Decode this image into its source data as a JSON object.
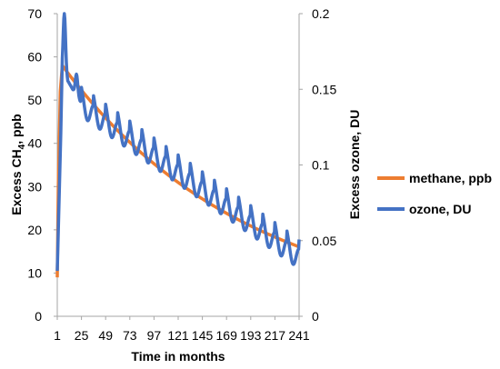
{
  "chart_data": {
    "type": "line",
    "xlabel": "Time in months",
    "ylabel_left": "Excess CH",
    "ylabel_left_sub": "4",
    "ylabel_left_tail": ", ppb",
    "ylabel_right": "Excess ozone, DU",
    "x_ticks": [
      "1",
      "25",
      "49",
      "73",
      "97",
      "121",
      "145",
      "169",
      "193",
      "217",
      "241"
    ],
    "x_range": [
      1,
      241
    ],
    "y_left_ticks": [
      "0",
      "10",
      "20",
      "30",
      "40",
      "50",
      "60",
      "70"
    ],
    "y_left_range": [
      0,
      70
    ],
    "y_right_ticks": [
      "0",
      "0.05",
      "0.1",
      "0.15",
      "0.2"
    ],
    "y_right_range": [
      0,
      0.2
    ],
    "grid": false,
    "legend_position": "right",
    "series": [
      {
        "name": "methane, ppb",
        "axis": "left",
        "color": "#ED7D31",
        "start_value": 58,
        "decay_rate": 0.00546,
        "rise": {
          "x": [
            1,
            2,
            4,
            6
          ],
          "y": [
            9,
            30,
            52,
            58
          ]
        }
      },
      {
        "name": "ozone, DU",
        "axis": "right",
        "color": "#4472C4",
        "baseline": {
          "x": [
            1,
            6,
            12,
            18,
            24,
            241
          ],
          "y": [
            0.03,
            0.16,
            0.155,
            0.148,
            0.142,
            0.041
          ]
        },
        "seasonal_peaks": {
          "x": [
            8,
            20
          ],
          "y": [
            0.2,
            0.16
          ]
        },
        "seasonal_amplitude": 0.013
      }
    ]
  }
}
